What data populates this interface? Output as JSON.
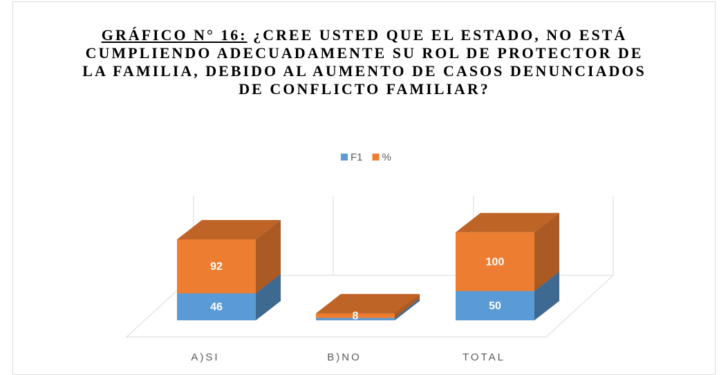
{
  "chart_data": {
    "type": "bar",
    "stacked": true,
    "three_d": true,
    "title_prefix": "GRÁFICO N° 16:",
    "title": "¿CREE USTED QUE EL ESTADO, NO ESTÁ CUMPLIENDO ADECUADAMENTE SU ROL DE PROTECTOR DE LA FAMILIA, DEBIDO AL AUMENTO DE CASOS DENUNCIADOS DE CONFLICTO FAMILIAR?",
    "categories": [
      "A)SI",
      "B)NO",
      "TOTAL"
    ],
    "series": [
      {
        "name": "F1",
        "color": "#5b9bd5",
        "values": [
          46,
          4,
          50
        ],
        "value_labels": [
          "46",
          null,
          "50"
        ]
      },
      {
        "name": "%",
        "color": "#ed7d31",
        "values": [
          92,
          8,
          100
        ],
        "value_labels": [
          "92",
          "8",
          "100"
        ]
      }
    ],
    "legend": "top"
  }
}
